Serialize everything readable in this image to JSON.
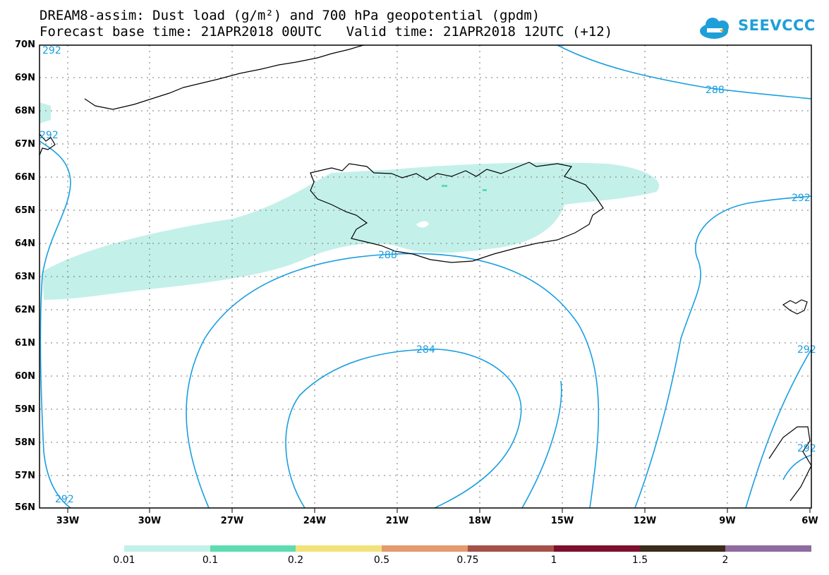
{
  "title": {
    "line1": "DREAM8-assim: Dust load (g/m²) and 700 hPa geopotential (gpdm)",
    "line2": "Forecast base time: 21APR2018 00UTC   Valid time: 21APR2018 12UTC (+12)"
  },
  "logo": {
    "text": "SEEVCCC"
  },
  "map": {
    "latitude_labels": [
      "70N",
      "69N",
      "68N",
      "67N",
      "66N",
      "65N",
      "64N",
      "63N",
      "62N",
      "61N",
      "60N",
      "59N",
      "58N",
      "57N",
      "56N"
    ],
    "longitude_labels": [
      "33W",
      "30W",
      "27W",
      "24W",
      "21W",
      "18W",
      "15W",
      "12W",
      "9W",
      "6W"
    ],
    "contour_labels": [
      "288",
      "292",
      "288",
      "284",
      "292",
      "292",
      "292",
      "292",
      "292"
    ],
    "contour_color": "#1a9ee0",
    "coastline_color": "#000000",
    "dust_fill_color": "#c4f0ea"
  },
  "colorbar": {
    "labels": [
      "0.01",
      "0.1",
      "0.2",
      "0.5",
      "0.75",
      "1",
      "1.5",
      "2"
    ],
    "colors": [
      "#c4f0ea",
      "#5ddcb2",
      "#f2e27a",
      "#e59a6e",
      "#a4514a",
      "#7d0f2c",
      "#3c2a1a",
      "#8f6ba0"
    ]
  }
}
